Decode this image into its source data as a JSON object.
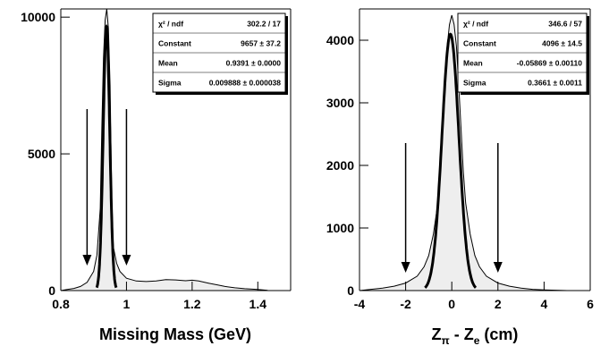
{
  "chart_data": [
    {
      "type": "histogram",
      "xlabel": "Missing Mass (GeV)",
      "ylabel": "",
      "xlim": [
        0.8,
        1.5
      ],
      "ylim": [
        0,
        10300
      ],
      "xticks": [
        "0.8",
        "1",
        "1.2",
        "1.4"
      ],
      "yticks": [
        "0",
        "5000",
        "10000"
      ],
      "legend_position": "top-right",
      "stats": [
        {
          "label": "χ² / ndf",
          "value": "302.2 / 17"
        },
        {
          "label": "Constant",
          "value": "9657 ± 37.2"
        },
        {
          "label": "Mean",
          "value": "0.9391 ± 0.0000"
        },
        {
          "label": "Sigma",
          "value": "0.009888 ± 0.000038"
        }
      ],
      "fit": {
        "function": "gaussian",
        "constant": 9657,
        "mean": 0.9391,
        "sigma": 0.009888
      },
      "cut_arrows_x": [
        0.88,
        1.0
      ],
      "histogram": {
        "x": [
          0.8,
          0.82,
          0.84,
          0.86,
          0.88,
          0.9,
          0.91,
          0.92,
          0.925,
          0.93,
          0.935,
          0.94,
          0.945,
          0.95,
          0.955,
          0.96,
          0.97,
          0.98,
          1.0,
          1.03,
          1.06,
          1.09,
          1.12,
          1.15,
          1.18,
          1.2,
          1.22,
          1.25,
          1.28,
          1.3,
          1.33,
          1.36,
          1.4,
          1.43
        ],
        "y": [
          0,
          40,
          80,
          150,
          300,
          700,
          1300,
          3000,
          6000,
          8500,
          9900,
          10300,
          9600,
          7500,
          3500,
          1600,
          1000,
          700,
          450,
          350,
          330,
          350,
          400,
          390,
          360,
          380,
          350,
          270,
          200,
          150,
          100,
          70,
          40,
          10
        ]
      }
    },
    {
      "type": "histogram",
      "xlabel": "Z_π - Z_e (cm)",
      "ylabel": "",
      "xlim": [
        -4,
        6
      ],
      "ylim": [
        0,
        4500
      ],
      "xticks": [
        "-4",
        "-2",
        "0",
        "2",
        "4",
        "6"
      ],
      "yticks": [
        "0",
        "1000",
        "2000",
        "3000",
        "4000"
      ],
      "legend_position": "top-right",
      "stats": [
        {
          "label": "χ² / ndf",
          "value": "346.6 / 57"
        },
        {
          "label": "Constant",
          "value": "4096 ± 14.5"
        },
        {
          "label": "Mean",
          "value": "-0.05869 ± 0.00110"
        },
        {
          "label": "Sigma",
          "value": "0.3661 ± 0.0011"
        }
      ],
      "fit": {
        "function": "gaussian",
        "constant": 4096,
        "mean": -0.05869,
        "sigma": 0.3661
      },
      "cut_arrows_x": [
        -2,
        2
      ],
      "histogram": {
        "x": [
          -4.0,
          -3.5,
          -3.0,
          -2.5,
          -2.0,
          -1.5,
          -1.2,
          -1.0,
          -0.8,
          -0.6,
          -0.5,
          -0.4,
          -0.3,
          -0.2,
          -0.1,
          0.0,
          0.1,
          0.2,
          0.3,
          0.4,
          0.5,
          0.6,
          0.8,
          1.0,
          1.2,
          1.5,
          2.0,
          2.5,
          3.0,
          3.5,
          4.0,
          4.5,
          5.0
        ],
        "y": [
          0,
          20,
          40,
          70,
          120,
          230,
          380,
          560,
          900,
          1400,
          1900,
          2600,
          3300,
          3900,
          4250,
          4400,
          4250,
          3900,
          3300,
          2600,
          1900,
          1400,
          900,
          560,
          380,
          230,
          120,
          70,
          40,
          20,
          12,
          6,
          0
        ]
      }
    }
  ]
}
